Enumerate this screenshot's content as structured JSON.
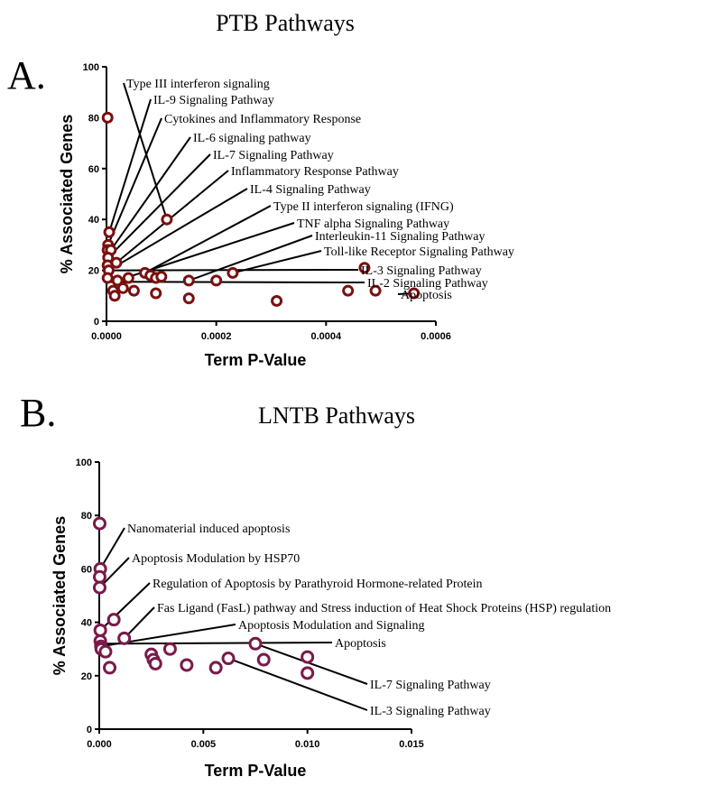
{
  "colors": {
    "chart_a_marker": "#7a1010",
    "chart_b_marker": "#7a1a4a",
    "axis": "#000000",
    "leader": "#000000"
  },
  "chart_data": [
    {
      "panel": "A.",
      "type": "scatter",
      "title": "PTB Pathways",
      "xlabel": "Term P-Value",
      "ylabel": "% Associated Genes",
      "xlim": [
        0,
        0.0006
      ],
      "ylim": [
        0,
        100
      ],
      "x_ticks": [
        "0.0000",
        "0.0002",
        "0.0004",
        "0.0006"
      ],
      "y_ticks": [
        "0",
        "20",
        "40",
        "60",
        "80",
        "100"
      ],
      "grid": false,
      "points": [
        {
          "x": 2e-06,
          "y": 80
        },
        {
          "x": 5e-06,
          "y": 35
        },
        {
          "x": 3e-06,
          "y": 30
        },
        {
          "x": 2e-06,
          "y": 28
        },
        {
          "x": 8e-06,
          "y": 28
        },
        {
          "x": 3e-06,
          "y": 25
        },
        {
          "x": 2e-06,
          "y": 22
        },
        {
          "x": 4e-06,
          "y": 20
        },
        {
          "x": 2e-06,
          "y": 17
        },
        {
          "x": 1.8e-05,
          "y": 23
        },
        {
          "x": 1.2e-05,
          "y": 12
        },
        {
          "x": 1.5e-05,
          "y": 10
        },
        {
          "x": 2e-05,
          "y": 16
        },
        {
          "x": 3e-05,
          "y": 13
        },
        {
          "x": 4e-05,
          "y": 17
        },
        {
          "x": 5e-05,
          "y": 12
        },
        {
          "x": 7e-05,
          "y": 19
        },
        {
          "x": 8e-05,
          "y": 18
        },
        {
          "x": 9e-05,
          "y": 17
        },
        {
          "x": 0.0001,
          "y": 17.5
        },
        {
          "x": 9e-05,
          "y": 11
        },
        {
          "x": 0.00011,
          "y": 40
        },
        {
          "x": 0.00015,
          "y": 16
        },
        {
          "x": 0.00015,
          "y": 9
        },
        {
          "x": 0.0002,
          "y": 16
        },
        {
          "x": 0.00023,
          "y": 19
        },
        {
          "x": 0.00031,
          "y": 8
        },
        {
          "x": 0.00044,
          "y": 12
        },
        {
          "x": 0.00047,
          "y": 21
        },
        {
          "x": 0.00049,
          "y": 12
        },
        {
          "x": 0.00056,
          "y": 11
        }
      ],
      "annotations": [
        {
          "text": "Type III interferon signaling",
          "point": [
            0.00011,
            40
          ]
        },
        {
          "text": "IL-9 Signaling Pathway",
          "point": [
            5e-06,
            35
          ]
        },
        {
          "text": "Cytokines and Inflammatory Response",
          "point": [
            3e-06,
            30
          ]
        },
        {
          "text": "IL-6 signaling pathway",
          "point": [
            8e-06,
            28
          ]
        },
        {
          "text": "IL-7 Signaling Pathway",
          "point": [
            3e-06,
            25
          ]
        },
        {
          "text": "Inflammatory Response Pathway",
          "point": [
            1.8e-05,
            23
          ]
        },
        {
          "text": "IL-4 Signaling Pathway",
          "point": [
            4e-06,
            20
          ]
        },
        {
          "text": "Type II interferon signaling (IFNG)",
          "point": [
            7e-05,
            19
          ]
        },
        {
          "text": "TNF alpha Signaling Pathway",
          "point": [
            2e-05,
            16
          ]
        },
        {
          "text": "Interleukin-11 Signaling Pathway",
          "point": [
            0.00015,
            16
          ]
        },
        {
          "text": "Toll-like Receptor Signaling Pathway",
          "point": [
            0.00023,
            19
          ]
        },
        {
          "text": "IL-3 Signaling Pathway",
          "point": [
            2e-06,
            20
          ]
        },
        {
          "text": "IL-2 Signaling Pathway",
          "point": [
            2e-06,
            15.5
          ]
        },
        {
          "text": "Apoptosis",
          "point": [
            0.00056,
            11
          ]
        }
      ]
    },
    {
      "panel": "B.",
      "type": "scatter",
      "title": "LNTB Pathways",
      "xlabel": "Term P-Value",
      "ylabel": "% Associated Genes",
      "xlim": [
        0,
        0.015
      ],
      "ylim": [
        0,
        100
      ],
      "x_ticks": [
        "0.000",
        "0.005",
        "0.010",
        "0.015"
      ],
      "y_ticks": [
        "0",
        "20",
        "40",
        "60",
        "80",
        "100"
      ],
      "grid": false,
      "points": [
        {
          "x": 2e-05,
          "y": 77
        },
        {
          "x": 5e-05,
          "y": 60
        },
        {
          "x": 2e-05,
          "y": 57
        },
        {
          "x": 2e-05,
          "y": 53
        },
        {
          "x": 0.0007,
          "y": 41
        },
        {
          "x": 5e-05,
          "y": 37
        },
        {
          "x": 0.0012,
          "y": 34
        },
        {
          "x": 5e-05,
          "y": 33
        },
        {
          "x": 8e-05,
          "y": 31
        },
        {
          "x": 0.0001,
          "y": 30
        },
        {
          "x": 0.0003,
          "y": 29
        },
        {
          "x": 0.0005,
          "y": 23
        },
        {
          "x": 0.0025,
          "y": 28
        },
        {
          "x": 0.0026,
          "y": 26
        },
        {
          "x": 0.0027,
          "y": 24.5
        },
        {
          "x": 0.0034,
          "y": 30
        },
        {
          "x": 0.0042,
          "y": 24
        },
        {
          "x": 0.0056,
          "y": 23
        },
        {
          "x": 0.0062,
          "y": 26.5
        },
        {
          "x": 0.0075,
          "y": 32
        },
        {
          "x": 0.0079,
          "y": 26
        },
        {
          "x": 0.01,
          "y": 27
        },
        {
          "x": 0.01,
          "y": 21
        }
      ],
      "annotations": [
        {
          "text": "Nanomaterial induced apoptosis",
          "point": [
            5e-05,
            60
          ]
        },
        {
          "text": "Apoptosis Modulation by HSP70",
          "point": [
            2e-05,
            53
          ]
        },
        {
          "text": "Regulation of Apoptosis by Parathyroid Hormone-related Protein",
          "point": [
            5e-05,
            37
          ]
        },
        {
          "text": "Fas Ligand (FasL) pathway and Stress induction of Heat Shock Proteins (HSP) regulation",
          "point": [
            0.0012,
            34
          ]
        },
        {
          "text": "Apoptosis Modulation and Signaling",
          "point": [
            8e-05,
            31
          ]
        },
        {
          "text": "Apoptosis",
          "point": [
            0.0001,
            32
          ]
        },
        {
          "text": "IL-7 Signaling Pathway",
          "point": [
            0.0075,
            32
          ]
        },
        {
          "text": "IL-3 Signaling Pathway",
          "point": [
            0.0062,
            26.5
          ]
        }
      ]
    }
  ]
}
